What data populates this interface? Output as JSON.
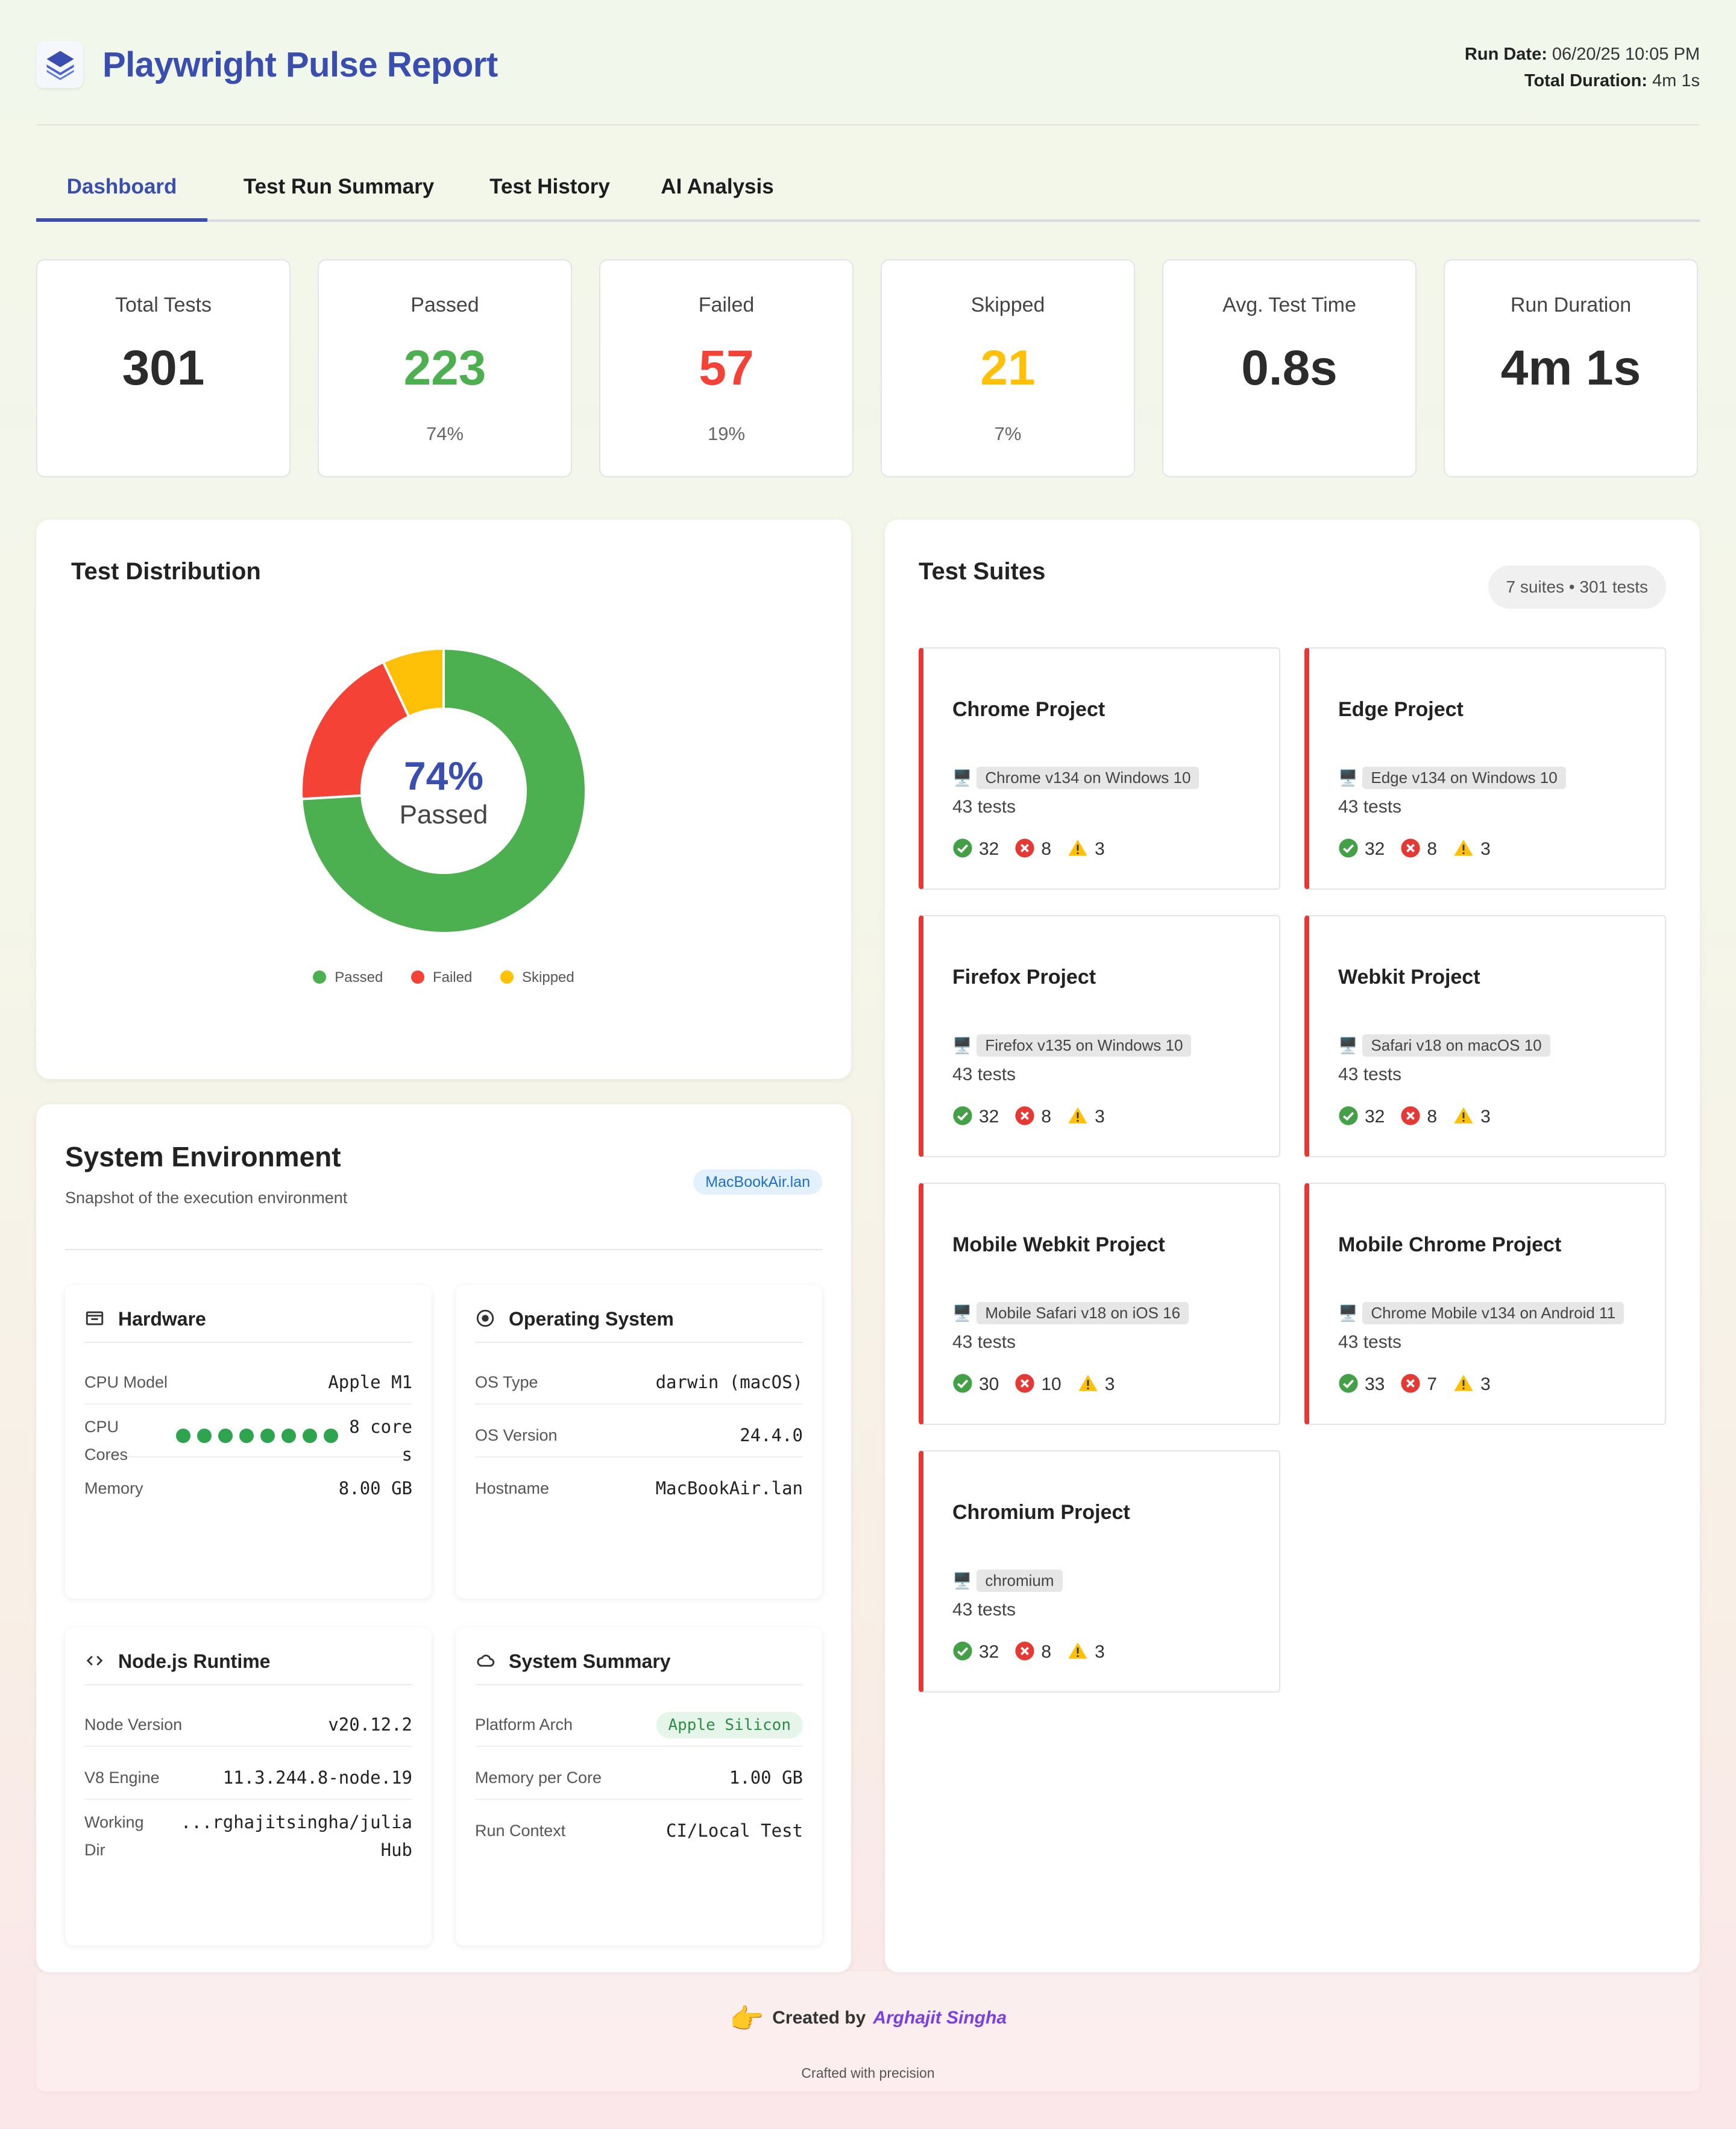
{
  "header": {
    "title": "Playwright Pulse Report",
    "run_date_label": "Run Date:",
    "run_date": "06/20/25 10:05 PM",
    "total_duration_label": "Total Duration:",
    "total_duration": "4m 1s"
  },
  "tabs": [
    {
      "label": "Dashboard",
      "active": true
    },
    {
      "label": "Test Run Summary"
    },
    {
      "label": "Test History"
    },
    {
      "label": "AI Analysis"
    }
  ],
  "stats": [
    {
      "label": "Total Tests",
      "value": "301",
      "color": "#2b2b2b"
    },
    {
      "label": "Passed",
      "value": "223",
      "pct": "74%",
      "color": "#4caf50"
    },
    {
      "label": "Failed",
      "value": "57",
      "pct": "19%",
      "color": "#f44336"
    },
    {
      "label": "Skipped",
      "value": "21",
      "pct": "7%",
      "color": "#ffc107"
    },
    {
      "label": "Avg. Test Time",
      "value": "0.8s",
      "color": "#2b2b2b"
    },
    {
      "label": "Run Duration",
      "value": "4m 1s",
      "color": "#2b2b2b"
    }
  ],
  "distribution": {
    "title": "Test Distribution",
    "center_pct": "74%",
    "center_label": "Passed",
    "chart_data": {
      "type": "pie",
      "labels": [
        "Passed",
        "Failed",
        "Skipped"
      ],
      "values": [
        223,
        57,
        21
      ],
      "colors": [
        "#4caf50",
        "#f44336",
        "#ffc107"
      ]
    },
    "legend": [
      "Passed",
      "Failed",
      "Skipped"
    ]
  },
  "suites": {
    "title": "Test Suites",
    "count_label": "7 suites • 301 tests",
    "items": [
      {
        "name": "Chrome Project",
        "browser": "Chrome v134 on Windows 10",
        "tests": "43 tests",
        "passed": "32",
        "failed": "8",
        "skipped": "3"
      },
      {
        "name": "Edge Project",
        "browser": "Edge v134 on Windows 10",
        "tests": "43 tests",
        "passed": "32",
        "failed": "8",
        "skipped": "3"
      },
      {
        "name": "Firefox Project",
        "browser": "Firefox v135 on Windows 10",
        "tests": "43 tests",
        "passed": "32",
        "failed": "8",
        "skipped": "3"
      },
      {
        "name": "Webkit Project",
        "browser": "Safari v18 on macOS 10",
        "tests": "43 tests",
        "passed": "32",
        "failed": "8",
        "skipped": "3"
      },
      {
        "name": "Mobile Webkit Project",
        "browser": "Mobile Safari v18 on iOS 16",
        "tests": "43 tests",
        "passed": "30",
        "failed": "10",
        "skipped": "3"
      },
      {
        "name": "Mobile Chrome Project",
        "browser": "Chrome Mobile v134 on Android 11",
        "tests": "43 tests",
        "passed": "33",
        "failed": "7",
        "skipped": "3"
      },
      {
        "name": "Chromium Project",
        "browser": "chromium",
        "tests": "43 tests",
        "passed": "32",
        "failed": "8",
        "skipped": "3"
      }
    ]
  },
  "system": {
    "title": "System Environment",
    "subtitle": "Snapshot of the execution environment",
    "host_badge": "MacBookAir.lan",
    "hardware": {
      "title": "Hardware",
      "cpu_model_label": "CPU Model",
      "cpu_model": "Apple M1",
      "cpu_cores_label_1": "CPU",
      "cpu_cores_label_2": "Cores",
      "cpu_cores_value_1": "8 core",
      "cpu_cores_value_2": "s",
      "cpu_core_count": 8,
      "memory_label": "Memory",
      "memory": "8.00 GB"
    },
    "os": {
      "title": "Operating System",
      "type_label": "OS Type",
      "type": "darwin (macOS)",
      "version_label": "OS Version",
      "version": "24.4.0",
      "hostname_label": "Hostname",
      "hostname": "MacBookAir.lan"
    },
    "node": {
      "title": "Node.js Runtime",
      "version_label": "Node Version",
      "version": "v20.12.2",
      "v8_label": "V8 Engine",
      "v8": "11.3.244.8-node.19",
      "dir_label_1": "Working",
      "dir_label_2": "Dir",
      "dir_value_1": "...rghajitsingha/julia",
      "dir_value_2": "Hub"
    },
    "summary": {
      "title": "System Summary",
      "arch_label": "Platform Arch",
      "arch": "Apple Silicon",
      "mem_core_label": "Memory per Core",
      "mem_core": "1.00 GB",
      "context_label": "Run Context",
      "context": "CI/Local Test"
    }
  },
  "footer": {
    "created_by": "Created by",
    "author": "Arghajit Singha",
    "crafted": "Crafted with precision"
  }
}
